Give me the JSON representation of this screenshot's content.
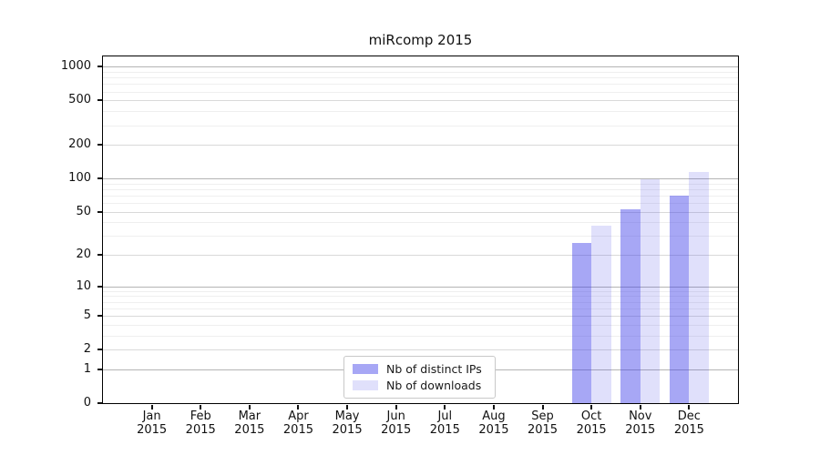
{
  "chart_data": {
    "type": "bar",
    "title": "miRcomp 2015",
    "categories": [
      "Jan",
      "Feb",
      "Mar",
      "Apr",
      "May",
      "Jun",
      "Jul",
      "Aug",
      "Sep",
      "Oct",
      "Nov",
      "Dec"
    ],
    "year": "2015",
    "series": [
      {
        "name": "Nb of distinct IPs",
        "color_hex": "#a7a7f4",
        "color_rgba": "rgba(60,60,232,0.45)",
        "values": [
          0,
          0,
          0,
          0,
          0,
          0,
          0,
          0,
          0,
          26,
          53,
          70
        ]
      },
      {
        "name": "Nb of downloads",
        "color_hex": "#e0e0fb",
        "color_rgba": "rgba(60,60,232,0.155)",
        "values": [
          0,
          0,
          0,
          0,
          0,
          0,
          0,
          0,
          0,
          37,
          98,
          115
        ]
      }
    ],
    "y_ticks": [
      0,
      1,
      2,
      5,
      10,
      20,
      50,
      100,
      200,
      500,
      1000
    ],
    "y_scale": "log1p",
    "ylim": [
      0,
      1240
    ],
    "xlabel": "",
    "ylabel": "",
    "grid": true,
    "legend_position": "lower center"
  },
  "colors": {
    "background": "#ffffff",
    "axis": "#000000",
    "text": "#1a1a1a",
    "grid_minor": "#efefef",
    "grid_major": "#d9d9d9",
    "grid_power10": "#b4b4b4",
    "legend_border": "#c8c8c8"
  }
}
